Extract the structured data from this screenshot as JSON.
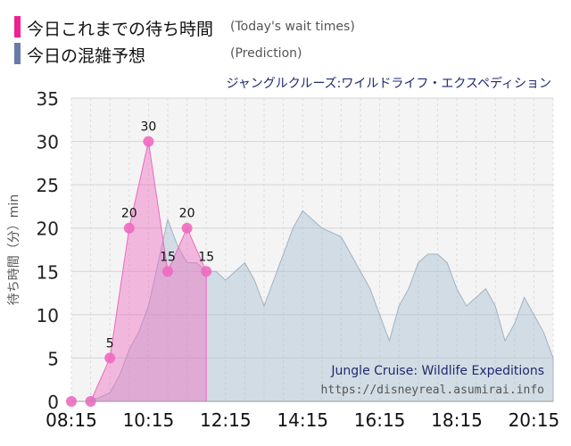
{
  "legend": {
    "actual_label": "今日これまでの待ち時間",
    "actual_sub": "(Today's wait times)",
    "actual_color": "#f02090",
    "prediction_label": "今日の混雑予想",
    "prediction_sub": "(Prediction)",
    "prediction_color": "#6a7aa8"
  },
  "watermark": {
    "title": "Jungle Cruise: Wildlife Expeditions",
    "url": "https://disneyreal.asumirai.info"
  },
  "chart_data": {
    "type": "area",
    "title": "ジャングルクルーズ:ワイルドライフ・エクスペディション",
    "xlabel": "",
    "ylabel": "待ち時間（分）min",
    "x_tick_labels": [
      "08:15",
      "10:15",
      "12:15",
      "14:15",
      "16:15",
      "18:15",
      "20:15"
    ],
    "xlim": [
      "08:15",
      "20:45"
    ],
    "ylim": [
      0,
      35
    ],
    "y_ticks": [
      0,
      5,
      10,
      15,
      20,
      25,
      30,
      35
    ],
    "grid": true,
    "series": [
      {
        "style": "prediction",
        "color": "#a9bfd0",
        "x": [
          "08:15",
          "08:45",
          "09:15",
          "09:30",
          "09:45",
          "10:00",
          "10:15",
          "10:30",
          "10:45",
          "11:00",
          "11:15",
          "11:30",
          "11:45",
          "12:00",
          "12:15",
          "12:30",
          "12:45",
          "13:00",
          "13:15",
          "13:30",
          "13:45",
          "14:00",
          "14:15",
          "14:30",
          "14:45",
          "15:00",
          "15:15",
          "15:30",
          "15:45",
          "16:00",
          "16:15",
          "16:30",
          "16:45",
          "17:00",
          "17:15",
          "17:30",
          "17:45",
          "18:00",
          "18:15",
          "18:30",
          "18:45",
          "19:00",
          "19:15",
          "19:30",
          "19:45",
          "20:00",
          "20:15",
          "20:30",
          "20:45"
        ],
        "values": [
          0,
          0,
          1,
          3,
          6,
          8,
          11,
          16,
          21,
          18,
          16,
          16,
          15,
          15,
          14,
          15,
          16,
          14,
          11,
          14,
          17,
          20,
          22,
          21,
          20,
          19.5,
          19,
          17,
          15,
          13,
          10,
          7,
          11,
          13,
          16,
          17,
          17,
          16,
          13,
          11,
          12,
          13,
          11,
          7,
          9,
          12,
          10,
          8,
          5
        ]
      },
      {
        "style": "actual",
        "color": "#f06cc0",
        "x": [
          "08:15",
          "08:45",
          "09:15",
          "09:45",
          "10:15",
          "10:45",
          "11:15",
          "11:45"
        ],
        "values": [
          0,
          0,
          5,
          20,
          30,
          15,
          20,
          15
        ]
      }
    ]
  }
}
